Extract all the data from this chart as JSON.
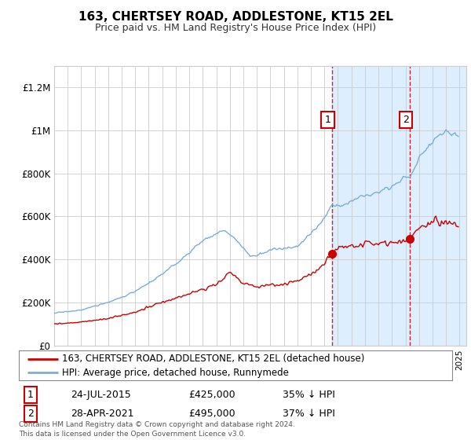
{
  "title": "163, CHERTSEY ROAD, ADDLESTONE, KT15 2EL",
  "subtitle": "Price paid vs. HM Land Registry's House Price Index (HPI)",
  "legend_label_red": "163, CHERTSEY ROAD, ADDLESTONE, KT15 2EL (detached house)",
  "legend_label_blue": "HPI: Average price, detached house, Runnymede",
  "sale1_date": "24-JUL-2015",
  "sale1_price": "£425,000",
  "sale1_pct": "35% ↓ HPI",
  "sale1_year": 2015.56,
  "sale1_value": 425000,
  "sale2_date": "28-APR-2021",
  "sale2_price": "£495,000",
  "sale2_pct": "37% ↓ HPI",
  "sale2_year": 2021.32,
  "sale2_value": 495000,
  "footer": "Contains HM Land Registry data © Crown copyright and database right 2024.\nThis data is licensed under the Open Government Licence v3.0.",
  "ylim": [
    0,
    1300000
  ],
  "xlim_start": 1995.0,
  "xlim_end": 2025.5,
  "red_color": "#cc0000",
  "blue_color": "#7aadda",
  "highlight_color": "#ddeeff",
  "background_color": "#ffffff",
  "grid_color": "#cccccc"
}
